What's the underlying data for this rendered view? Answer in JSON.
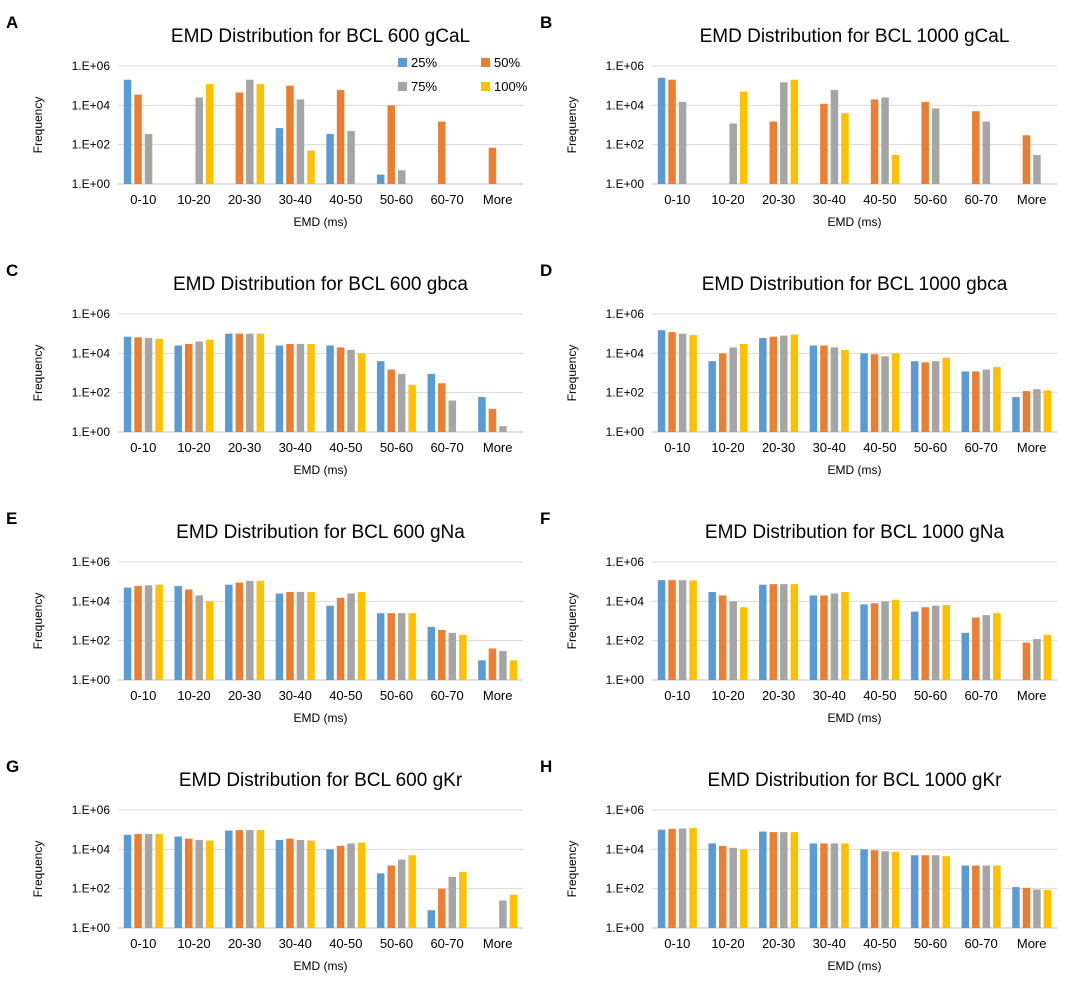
{
  "figure": {
    "colors": {
      "series": [
        "#5B9BD5",
        "#ED7D31",
        "#A5A5A5",
        "#FFC000"
      ],
      "grid": "#D9D9D9",
      "axis": "#BFBFBF",
      "text": "#000000"
    },
    "legend": {
      "placement": "top-right of panel A",
      "entries": [
        "25%",
        "50%",
        "75%",
        "100%"
      ]
    }
  },
  "chart_data": [
    {
      "panel_label": "A",
      "type": "bar",
      "title": "EMD Distribution for BCL 600 gCaL",
      "xlabel": "EMD (ms)",
      "ylabel": "Frequency",
      "yscale": "log",
      "ylim": [
        1,
        1000000
      ],
      "yticks": [
        "1.E+00",
        "1.E+02",
        "1.E+04",
        "1.E+06"
      ],
      "categories": [
        "0-10",
        "10-20",
        "20-30",
        "30-40",
        "40-50",
        "50-60",
        "60-70",
        "More"
      ],
      "series": [
        {
          "name": "25%",
          "values": [
            200000,
            null,
            null,
            700,
            350,
            3,
            null,
            null
          ]
        },
        {
          "name": "50%",
          "values": [
            35000,
            null,
            45000,
            100000,
            60000,
            10000,
            1500,
            70
          ]
        },
        {
          "name": "75%",
          "values": [
            350,
            25000,
            200000,
            20000,
            500,
            5,
            null,
            null
          ]
        },
        {
          "name": "100%",
          "values": [
            null,
            120000,
            120000,
            50,
            null,
            null,
            null,
            null
          ]
        }
      ],
      "grid": true,
      "legend": "top-right"
    },
    {
      "panel_label": "B",
      "type": "bar",
      "title": "EMD Distribution for BCL 1000 gCaL",
      "xlabel": "EMD (ms)",
      "ylabel": "Frequency",
      "yscale": "log",
      "ylim": [
        1,
        1000000
      ],
      "yticks": [
        "1.E+00",
        "1.E+02",
        "1.E+04",
        "1.E+06"
      ],
      "categories": [
        "0-10",
        "10-20",
        "20-30",
        "30-40",
        "40-50",
        "50-60",
        "60-70",
        "More"
      ],
      "series": [
        {
          "name": "25%",
          "values": [
            250000,
            null,
            null,
            null,
            null,
            null,
            null,
            null
          ]
        },
        {
          "name": "50%",
          "values": [
            200000,
            null,
            1500,
            12000,
            20000,
            15000,
            5000,
            300
          ]
        },
        {
          "name": "75%",
          "values": [
            15000,
            1200,
            150000,
            60000,
            25000,
            7000,
            1500,
            30
          ]
        },
        {
          "name": "100%",
          "values": [
            null,
            50000,
            200000,
            4000,
            30,
            null,
            null,
            null
          ]
        }
      ],
      "grid": true,
      "legend": "none"
    },
    {
      "panel_label": "C",
      "type": "bar",
      "title": "EMD Distribution for BCL 600 gbca",
      "xlabel": "EMD (ms)",
      "ylabel": "Frequency",
      "yscale": "log",
      "ylim": [
        1,
        1000000
      ],
      "yticks": [
        "1.E+00",
        "1.E+02",
        "1.E+04",
        "1.E+06"
      ],
      "categories": [
        "0-10",
        "10-20",
        "20-30",
        "30-40",
        "40-50",
        "50-60",
        "60-70",
        "More"
      ],
      "series": [
        {
          "name": "25%",
          "values": [
            70000,
            25000,
            100000,
            25000,
            25000,
            4000,
            900,
            60
          ]
        },
        {
          "name": "50%",
          "values": [
            65000,
            30000,
            100000,
            30000,
            20000,
            1500,
            300,
            15
          ]
        },
        {
          "name": "75%",
          "values": [
            60000,
            40000,
            100000,
            30000,
            15000,
            900,
            40,
            2
          ]
        },
        {
          "name": "100%",
          "values": [
            55000,
            50000,
            100000,
            30000,
            10000,
            250,
            null,
            null
          ]
        }
      ],
      "grid": true,
      "legend": "none"
    },
    {
      "panel_label": "D",
      "type": "bar",
      "title": "EMD Distribution for BCL 1000 gbca",
      "xlabel": "EMD (ms)",
      "ylabel": "Frequency",
      "yscale": "log",
      "ylim": [
        1,
        1000000
      ],
      "yticks": [
        "1.E+00",
        "1.E+02",
        "1.E+04",
        "1.E+06"
      ],
      "categories": [
        "0-10",
        "10-20",
        "20-30",
        "30-40",
        "40-50",
        "50-60",
        "60-70",
        "More"
      ],
      "series": [
        {
          "name": "25%",
          "values": [
            150000,
            4000,
            60000,
            25000,
            10000,
            4000,
            1200,
            60
          ]
        },
        {
          "name": "50%",
          "values": [
            120000,
            10000,
            70000,
            25000,
            9000,
            3500,
            1200,
            120
          ]
        },
        {
          "name": "75%",
          "values": [
            100000,
            20000,
            80000,
            20000,
            7000,
            4000,
            1500,
            150
          ]
        },
        {
          "name": "100%",
          "values": [
            85000,
            30000,
            90000,
            15000,
            10000,
            6000,
            2000,
            130
          ]
        }
      ],
      "grid": true,
      "legend": "none"
    },
    {
      "panel_label": "E",
      "type": "bar",
      "title": "EMD Distribution for BCL 600 gNa",
      "xlabel": "EMD (ms)",
      "ylabel": "Frequency",
      "yscale": "log",
      "ylim": [
        1,
        1000000
      ],
      "yticks": [
        "1.E+00",
        "1.E+02",
        "1.E+04",
        "1.E+06"
      ],
      "categories": [
        "0-10",
        "10-20",
        "20-30",
        "30-40",
        "40-50",
        "50-60",
        "60-70",
        "More"
      ],
      "series": [
        {
          "name": "25%",
          "values": [
            50000,
            60000,
            70000,
            25000,
            6000,
            2500,
            500,
            10
          ]
        },
        {
          "name": "50%",
          "values": [
            60000,
            40000,
            90000,
            30000,
            15000,
            2500,
            350,
            40
          ]
        },
        {
          "name": "75%",
          "values": [
            65000,
            20000,
            110000,
            30000,
            25000,
            2500,
            250,
            30
          ]
        },
        {
          "name": "100%",
          "values": [
            70000,
            10000,
            110000,
            30000,
            30000,
            2500,
            200,
            10
          ]
        }
      ],
      "grid": true,
      "legend": "none"
    },
    {
      "panel_label": "F",
      "type": "bar",
      "title": "EMD Distribution for BCL 1000 gNa",
      "xlabel": "EMD (ms)",
      "ylabel": "Frequency",
      "yscale": "log",
      "ylim": [
        1,
        1000000
      ],
      "yticks": [
        "1.E+00",
        "1.E+02",
        "1.E+04",
        "1.E+06"
      ],
      "categories": [
        "0-10",
        "10-20",
        "20-30",
        "30-40",
        "40-50",
        "50-60",
        "60-70",
        "More"
      ],
      "series": [
        {
          "name": "25%",
          "values": [
            120000,
            30000,
            70000,
            20000,
            7000,
            3000,
            250,
            null
          ]
        },
        {
          "name": "50%",
          "values": [
            120000,
            20000,
            75000,
            20000,
            8000,
            5000,
            1500,
            80
          ]
        },
        {
          "name": "75%",
          "values": [
            120000,
            10000,
            75000,
            25000,
            10000,
            6000,
            2000,
            120
          ]
        },
        {
          "name": "100%",
          "values": [
            115000,
            5000,
            75000,
            30000,
            12000,
            6500,
            2500,
            200
          ]
        }
      ],
      "grid": true,
      "legend": "none"
    },
    {
      "panel_label": "G",
      "type": "bar",
      "title": "EMD Distribution for BCL 600 gKr",
      "xlabel": "EMD (ms)",
      "ylabel": "Frequency",
      "yscale": "log",
      "ylim": [
        1,
        1000000
      ],
      "yticks": [
        "1.E+00",
        "1.E+02",
        "1.E+04",
        "1.E+06"
      ],
      "categories": [
        "0-10",
        "10-20",
        "20-30",
        "30-40",
        "40-50",
        "50-60",
        "60-70",
        "More"
      ],
      "series": [
        {
          "name": "25%",
          "values": [
            55000,
            45000,
            90000,
            30000,
            10000,
            600,
            8,
            null
          ]
        },
        {
          "name": "50%",
          "values": [
            60000,
            35000,
            95000,
            35000,
            15000,
            1500,
            100,
            null
          ]
        },
        {
          "name": "75%",
          "values": [
            60000,
            30000,
            95000,
            30000,
            20000,
            3000,
            400,
            25
          ]
        },
        {
          "name": "100%",
          "values": [
            60000,
            28000,
            95000,
            28000,
            22000,
            5000,
            700,
            50
          ]
        }
      ],
      "grid": true,
      "legend": "none"
    },
    {
      "panel_label": "H",
      "type": "bar",
      "title": "EMD Distribution for BCL 1000 gKr",
      "xlabel": "EMD (ms)",
      "ylabel": "Frequency",
      "yscale": "log",
      "ylim": [
        1,
        1000000
      ],
      "yticks": [
        "1.E+00",
        "1.E+02",
        "1.E+04",
        "1.E+06"
      ],
      "categories": [
        "0-10",
        "10-20",
        "20-30",
        "30-40",
        "40-50",
        "50-60",
        "60-70",
        "More"
      ],
      "series": [
        {
          "name": "25%",
          "values": [
            100000,
            20000,
            80000,
            20000,
            10000,
            5000,
            1500,
            120
          ]
        },
        {
          "name": "50%",
          "values": [
            110000,
            15000,
            75000,
            20000,
            9000,
            5000,
            1500,
            110
          ]
        },
        {
          "name": "75%",
          "values": [
            115000,
            12000,
            75000,
            20000,
            8000,
            5000,
            1500,
            90
          ]
        },
        {
          "name": "100%",
          "values": [
            120000,
            10000,
            75000,
            20000,
            7500,
            4500,
            1500,
            85
          ]
        }
      ],
      "grid": true,
      "legend": "none"
    }
  ]
}
